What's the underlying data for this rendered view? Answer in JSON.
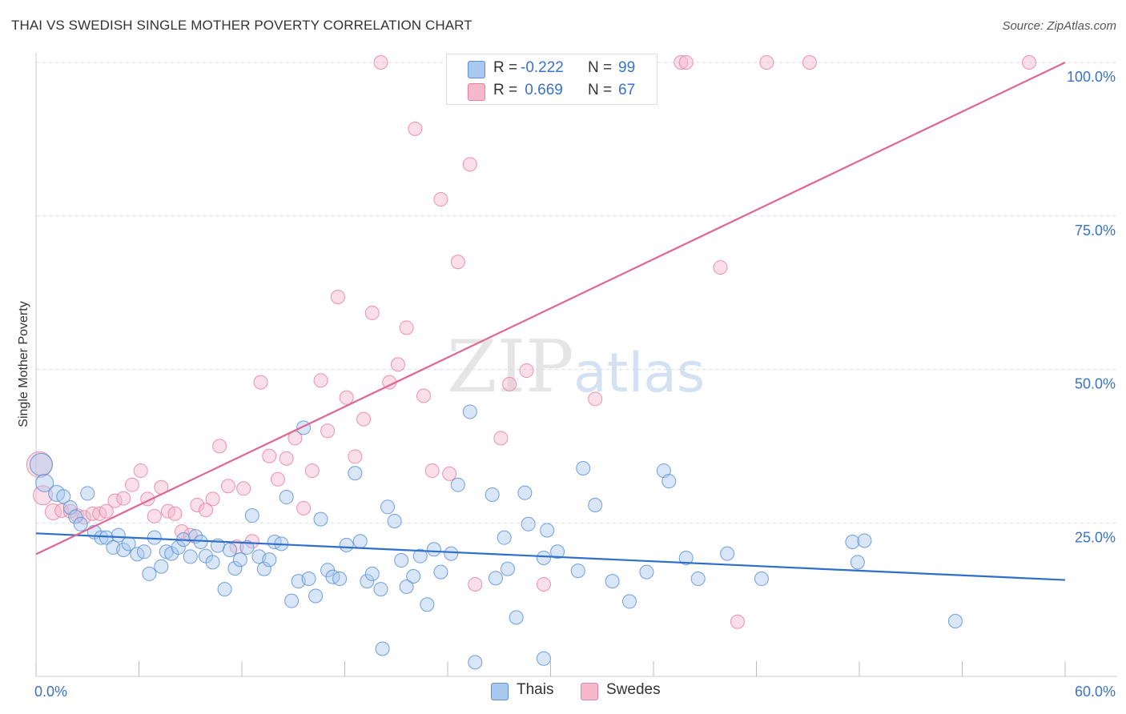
{
  "header": {
    "title": "THAI VS SWEDISH SINGLE MOTHER POVERTY CORRELATION CHART",
    "source": "Source: ZipAtlas.com"
  },
  "watermark": {
    "zip": "ZIP",
    "atlas": "atlas"
  },
  "legend": {
    "rows": [
      {
        "r_label": "R =",
        "r_value": "-0.222",
        "n_label": "N =",
        "n_value": "99"
      },
      {
        "r_label": "R =",
        "r_value": " 0.669",
        "n_label": "N =",
        "n_value": "67"
      }
    ]
  },
  "bottom_legend": {
    "thais": "Thais",
    "swedes": "Swedes"
  },
  "colors": {
    "thais_fill": "#a9c8f0",
    "thais_stroke": "#5b8fd6",
    "thais_line": "#2f6fcc",
    "swedes_fill": "#f5b9cb",
    "swedes_stroke": "#e8809f",
    "swedes_line": "#e06690",
    "tick_label": "#3a72c8",
    "grid": "#dddddd"
  },
  "chart_data": {
    "type": "scatter",
    "title": "THAI VS SWEDISH SINGLE MOTHER POVERTY CORRELATION CHART",
    "xlabel": "",
    "ylabel": "Single Mother Poverty",
    "x_unit": "%",
    "y_unit": "%",
    "xlim": [
      0,
      60
    ],
    "ylim": [
      0,
      100
    ],
    "x_tick_labels": [
      "0.0%",
      "60.0%"
    ],
    "y_ticks": [
      25,
      50,
      75,
      100
    ],
    "y_tick_labels": [
      "25.0%",
      "50.0%",
      "75.0%",
      "100.0%"
    ],
    "grid": "horizontal dashed",
    "legend_position": "top-center",
    "series": [
      {
        "name": "Thais",
        "stats": {
          "R": -0.222,
          "N": 99
        },
        "trend": {
          "x": [
            0,
            60
          ],
          "y": [
            23.3,
            15.7
          ]
        },
        "points": [
          {
            "x": 0.3,
            "y": 34.5,
            "s": 14
          },
          {
            "x": 0.5,
            "y": 31.5,
            "s": 11
          },
          {
            "x": 1.2,
            "y": 29.8,
            "s": 10
          },
          {
            "x": 1.6,
            "y": 29.3
          },
          {
            "x": 2.0,
            "y": 27.5
          },
          {
            "x": 2.3,
            "y": 26.0
          },
          {
            "x": 2.6,
            "y": 24.8
          },
          {
            "x": 3.0,
            "y": 29.8
          },
          {
            "x": 3.4,
            "y": 23.5
          },
          {
            "x": 3.8,
            "y": 22.6
          },
          {
            "x": 4.1,
            "y": 22.6
          },
          {
            "x": 4.5,
            "y": 21.0
          },
          {
            "x": 4.8,
            "y": 23.0
          },
          {
            "x": 5.1,
            "y": 20.6
          },
          {
            "x": 5.4,
            "y": 21.6
          },
          {
            "x": 5.9,
            "y": 19.9
          },
          {
            "x": 6.3,
            "y": 20.3
          },
          {
            "x": 6.6,
            "y": 16.7
          },
          {
            "x": 6.9,
            "y": 22.6
          },
          {
            "x": 7.3,
            "y": 17.9
          },
          {
            "x": 7.6,
            "y": 20.3
          },
          {
            "x": 7.9,
            "y": 20.0
          },
          {
            "x": 8.3,
            "y": 21.0
          },
          {
            "x": 8.6,
            "y": 22.3
          },
          {
            "x": 9.0,
            "y": 19.5
          },
          {
            "x": 9.3,
            "y": 22.8
          },
          {
            "x": 9.6,
            "y": 21.9
          },
          {
            "x": 9.9,
            "y": 19.6
          },
          {
            "x": 10.3,
            "y": 18.6
          },
          {
            "x": 10.6,
            "y": 21.3
          },
          {
            "x": 11.0,
            "y": 14.2
          },
          {
            "x": 11.3,
            "y": 20.6
          },
          {
            "x": 11.6,
            "y": 17.6
          },
          {
            "x": 11.9,
            "y": 19.0
          },
          {
            "x": 12.3,
            "y": 21.0
          },
          {
            "x": 12.6,
            "y": 26.2
          },
          {
            "x": 13.0,
            "y": 19.5
          },
          {
            "x": 13.3,
            "y": 17.5
          },
          {
            "x": 13.6,
            "y": 19.0
          },
          {
            "x": 13.9,
            "y": 21.9
          },
          {
            "x": 14.3,
            "y": 21.6
          },
          {
            "x": 14.6,
            "y": 29.2
          },
          {
            "x": 14.9,
            "y": 12.3
          },
          {
            "x": 15.3,
            "y": 15.5
          },
          {
            "x": 15.6,
            "y": 40.5
          },
          {
            "x": 15.9,
            "y": 15.9
          },
          {
            "x": 16.3,
            "y": 13.1
          },
          {
            "x": 16.6,
            "y": 25.6
          },
          {
            "x": 17.0,
            "y": 17.3
          },
          {
            "x": 17.3,
            "y": 16.2
          },
          {
            "x": 17.7,
            "y": 15.9
          },
          {
            "x": 18.1,
            "y": 21.4
          },
          {
            "x": 18.6,
            "y": 33.1
          },
          {
            "x": 18.9,
            "y": 22.0
          },
          {
            "x": 19.3,
            "y": 15.5
          },
          {
            "x": 19.6,
            "y": 16.7
          },
          {
            "x": 20.1,
            "y": 14.2
          },
          {
            "x": 20.5,
            "y": 27.6
          },
          {
            "x": 20.9,
            "y": 25.3
          },
          {
            "x": 21.3,
            "y": 18.9
          },
          {
            "x": 21.6,
            "y": 14.6
          },
          {
            "x": 22.0,
            "y": 16.3
          },
          {
            "x": 22.4,
            "y": 19.6
          },
          {
            "x": 22.8,
            "y": 11.7
          },
          {
            "x": 23.2,
            "y": 20.7
          },
          {
            "x": 23.6,
            "y": 17.0
          },
          {
            "x": 24.2,
            "y": 20.0
          },
          {
            "x": 24.6,
            "y": 31.2
          },
          {
            "x": 25.3,
            "y": 43.1
          },
          {
            "x": 26.6,
            "y": 29.6
          },
          {
            "x": 26.8,
            "y": 16.0
          },
          {
            "x": 27.3,
            "y": 22.6
          },
          {
            "x": 27.5,
            "y": 17.5
          },
          {
            "x": 28.0,
            "y": 9.6
          },
          {
            "x": 28.5,
            "y": 29.9
          },
          {
            "x": 28.7,
            "y": 24.8
          },
          {
            "x": 29.8,
            "y": 23.8
          },
          {
            "x": 29.6,
            "y": 19.3
          },
          {
            "x": 30.4,
            "y": 20.3
          },
          {
            "x": 31.6,
            "y": 17.2
          },
          {
            "x": 31.9,
            "y": 33.9
          },
          {
            "x": 32.6,
            "y": 27.9
          },
          {
            "x": 33.6,
            "y": 15.5
          },
          {
            "x": 34.6,
            "y": 12.2
          },
          {
            "x": 35.6,
            "y": 17.0
          },
          {
            "x": 36.6,
            "y": 33.5
          },
          {
            "x": 36.9,
            "y": 31.8
          },
          {
            "x": 37.9,
            "y": 19.3
          },
          {
            "x": 38.6,
            "y": 15.9
          },
          {
            "x": 40.3,
            "y": 20.0
          },
          {
            "x": 42.3,
            "y": 15.9
          },
          {
            "x": 47.6,
            "y": 21.9
          },
          {
            "x": 47.9,
            "y": 18.6
          },
          {
            "x": 48.3,
            "y": 22.1
          },
          {
            "x": 53.6,
            "y": 9.0
          },
          {
            "x": 20.2,
            "y": 4.5
          },
          {
            "x": 25.6,
            "y": 2.3
          },
          {
            "x": 29.6,
            "y": 2.9
          }
        ]
      },
      {
        "name": "Swedes",
        "stats": {
          "R": 0.669,
          "N": 67
        },
        "trend": {
          "x": [
            0,
            60
          ],
          "y": [
            19.9,
            100
          ]
        },
        "points": [
          {
            "x": 0.2,
            "y": 34.5,
            "s": 16
          },
          {
            "x": 0.4,
            "y": 29.5,
            "s": 12
          },
          {
            "x": 1.0,
            "y": 26.8,
            "s": 10
          },
          {
            "x": 1.5,
            "y": 27.0
          },
          {
            "x": 2.0,
            "y": 26.9
          },
          {
            "x": 2.4,
            "y": 26.2
          },
          {
            "x": 2.8,
            "y": 25.9
          },
          {
            "x": 3.3,
            "y": 26.5
          },
          {
            "x": 3.7,
            "y": 26.5
          },
          {
            "x": 4.1,
            "y": 26.9
          },
          {
            "x": 4.6,
            "y": 28.6
          },
          {
            "x": 5.1,
            "y": 29.0
          },
          {
            "x": 5.6,
            "y": 31.2
          },
          {
            "x": 6.1,
            "y": 33.5
          },
          {
            "x": 6.5,
            "y": 28.9
          },
          {
            "x": 6.9,
            "y": 26.1
          },
          {
            "x": 7.3,
            "y": 30.8
          },
          {
            "x": 7.7,
            "y": 26.9
          },
          {
            "x": 8.1,
            "y": 26.5
          },
          {
            "x": 8.5,
            "y": 23.6
          },
          {
            "x": 9.0,
            "y": 23.0
          },
          {
            "x": 9.4,
            "y": 27.9
          },
          {
            "x": 9.9,
            "y": 27.1
          },
          {
            "x": 10.3,
            "y": 28.9
          },
          {
            "x": 10.7,
            "y": 37.5
          },
          {
            "x": 11.2,
            "y": 31.0
          },
          {
            "x": 11.7,
            "y": 21.1
          },
          {
            "x": 12.1,
            "y": 30.6
          },
          {
            "x": 12.6,
            "y": 22.0
          },
          {
            "x": 13.1,
            "y": 47.9
          },
          {
            "x": 13.6,
            "y": 35.9
          },
          {
            "x": 14.1,
            "y": 32.1
          },
          {
            "x": 14.6,
            "y": 35.5
          },
          {
            "x": 15.1,
            "y": 38.8
          },
          {
            "x": 15.6,
            "y": 27.4
          },
          {
            "x": 16.1,
            "y": 33.5
          },
          {
            "x": 16.6,
            "y": 48.2
          },
          {
            "x": 17.0,
            "y": 40.0
          },
          {
            "x": 17.6,
            "y": 61.8
          },
          {
            "x": 18.1,
            "y": 45.4
          },
          {
            "x": 18.6,
            "y": 35.8
          },
          {
            "x": 19.1,
            "y": 41.9
          },
          {
            "x": 19.6,
            "y": 59.2
          },
          {
            "x": 20.1,
            "y": 100.0
          },
          {
            "x": 20.6,
            "y": 47.9
          },
          {
            "x": 21.1,
            "y": 50.8
          },
          {
            "x": 21.6,
            "y": 56.8
          },
          {
            "x": 22.1,
            "y": 89.2
          },
          {
            "x": 22.6,
            "y": 45.7
          },
          {
            "x": 23.1,
            "y": 33.5
          },
          {
            "x": 23.6,
            "y": 77.7
          },
          {
            "x": 24.1,
            "y": 33.0
          },
          {
            "x": 24.6,
            "y": 67.5
          },
          {
            "x": 25.3,
            "y": 83.4
          },
          {
            "x": 25.6,
            "y": 15.0
          },
          {
            "x": 27.1,
            "y": 38.8
          },
          {
            "x": 27.6,
            "y": 47.6
          },
          {
            "x": 28.6,
            "y": 49.8
          },
          {
            "x": 29.6,
            "y": 15.0
          },
          {
            "x": 32.6,
            "y": 45.2
          },
          {
            "x": 37.6,
            "y": 100.0
          },
          {
            "x": 37.9,
            "y": 100.0
          },
          {
            "x": 39.9,
            "y": 66.6
          },
          {
            "x": 40.9,
            "y": 8.9
          },
          {
            "x": 42.6,
            "y": 100.0
          },
          {
            "x": 45.1,
            "y": 100.0
          },
          {
            "x": 57.9,
            "y": 100.0
          }
        ]
      }
    ]
  }
}
